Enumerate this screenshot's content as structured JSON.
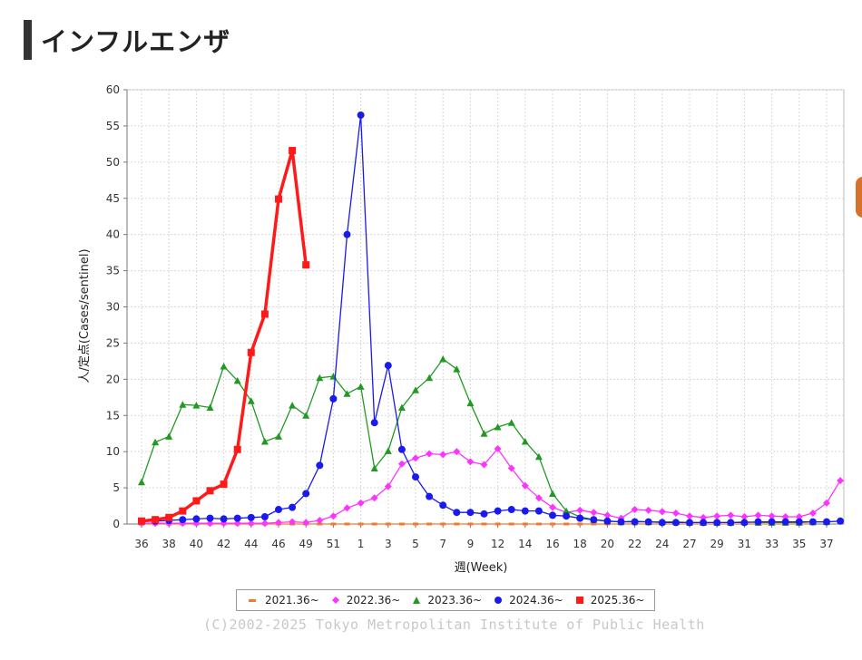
{
  "page": {
    "title": "インフルエンザ"
  },
  "copyright": "(C)2002-2025 Tokyo Metropolitan Institute of Public Health",
  "chart_data": {
    "type": "line",
    "xlabel": "週(Week)",
    "ylabel": "人/定点(Cases/sentinel)",
    "ylim": [
      0,
      60
    ],
    "yticks": [
      0,
      5,
      10,
      15,
      20,
      25,
      30,
      35,
      40,
      45,
      50,
      55,
      60
    ],
    "grid": true,
    "legend_position": "bottom",
    "x_tick_labels": [
      "36",
      "38",
      "40",
      "42",
      "44",
      "46",
      "49",
      "51",
      "1",
      "3",
      "5",
      "7",
      "9",
      "12",
      "14",
      "16",
      "18",
      "20",
      "22",
      "24",
      "27",
      "29",
      "31",
      "33",
      "35",
      "37"
    ],
    "x_tick_positions": [
      0,
      2,
      4,
      6,
      8,
      10,
      12,
      14,
      16,
      18,
      20,
      22,
      24,
      26,
      28,
      30,
      32,
      34,
      36,
      38,
      40,
      42,
      44,
      46,
      48,
      50
    ],
    "series": [
      {
        "name": "2021.36~",
        "color": "#f07a2e",
        "marker": "dash",
        "values": [
          0.0,
          0.0,
          0.0,
          0.0,
          0.0,
          0.0,
          0.0,
          0.0,
          0.0,
          0.0,
          0.0,
          0.0,
          0.0,
          0.0,
          0.0,
          0.0,
          0.0,
          0.0,
          0.0,
          0.0,
          0.0,
          0.0,
          0.0,
          0.0,
          0.0,
          0.0,
          0.0,
          0.0,
          0.0,
          0.0,
          0.0,
          0.0,
          0.0,
          0.0,
          0.0,
          0.0,
          0.0,
          0.0,
          0.0,
          0.0,
          0.0,
          0.0,
          0.0,
          0.0,
          0.0,
          0.0,
          0.0,
          0.0,
          0.0,
          0.0
        ]
      },
      {
        "name": "2022.36~",
        "color": "#ff33ff",
        "marker": "diamond",
        "values": [
          0.1,
          0.1,
          0.1,
          0.1,
          0.1,
          0.1,
          0.1,
          0.1,
          0.1,
          0.1,
          0.2,
          0.3,
          0.2,
          0.5,
          1.1,
          2.2,
          2.9,
          3.6,
          5.2,
          8.3,
          9.1,
          9.7,
          9.6,
          10.0,
          8.6,
          8.2,
          10.4,
          7.7,
          5.3,
          3.6,
          2.3,
          1.6,
          1.9,
          1.6,
          1.2,
          0.8,
          2.0,
          1.9,
          1.7,
          1.5,
          1.1,
          0.9,
          1.1,
          1.2,
          1.0,
          1.2,
          1.1,
          1.0,
          1.0,
          1.5,
          2.9,
          6.0
        ]
      },
      {
        "name": "2023.36~",
        "color": "#229922",
        "marker": "triangle",
        "values": [
          5.8,
          11.3,
          12.1,
          16.5,
          16.4,
          16.1,
          21.8,
          19.8,
          17.0,
          11.4,
          12.1,
          16.4,
          15.0,
          20.2,
          20.4,
          18.0,
          19.0,
          7.7,
          10.1,
          16.1,
          18.5,
          20.2,
          22.8,
          21.4,
          16.7,
          12.5,
          13.4,
          14.0,
          11.4,
          9.3,
          4.2,
          1.8,
          1.0,
          0.6,
          0.4,
          0.3,
          0.4,
          0.3,
          0.3,
          0.3,
          0.2,
          0.2,
          0.2,
          0.2,
          0.3,
          0.2,
          0.2,
          0.2,
          0.2,
          0.3,
          0.3
        ]
      },
      {
        "name": "2024.36~",
        "color": "#1a1aee",
        "marker": "circle",
        "values": [
          0.4,
          0.4,
          0.5,
          0.6,
          0.7,
          0.8,
          0.7,
          0.8,
          0.9,
          1.0,
          2.0,
          2.3,
          4.2,
          8.1,
          17.3,
          40.0,
          56.5,
          14.0,
          21.9,
          10.3,
          6.5,
          3.8,
          2.6,
          1.6,
          1.6,
          1.4,
          1.8,
          2.0,
          1.8,
          1.8,
          1.2,
          1.1,
          0.8,
          0.6,
          0.4,
          0.3,
          0.3,
          0.3,
          0.2,
          0.2,
          0.2,
          0.2,
          0.2,
          0.2,
          0.2,
          0.3,
          0.3,
          0.3,
          0.3,
          0.3,
          0.3,
          0.4
        ]
      },
      {
        "name": "2025.36~",
        "color": "#ff1a1a",
        "marker": "square",
        "values": [
          0.4,
          0.6,
          0.9,
          1.8,
          3.2,
          4.6,
          5.5,
          10.3,
          23.7,
          29.0,
          44.9,
          51.6,
          35.8
        ]
      }
    ]
  },
  "legend": {
    "items": [
      {
        "label": "2021.36~",
        "color": "#f07a2e",
        "marker": "dash"
      },
      {
        "label": "2022.36~",
        "color": "#ff33ff",
        "marker": "diamond"
      },
      {
        "label": "2023.36~",
        "color": "#229922",
        "marker": "triangle"
      },
      {
        "label": "2024.36~",
        "color": "#1a1aee",
        "marker": "circle"
      },
      {
        "label": "2025.36~",
        "color": "#ff1a1a",
        "marker": "square"
      }
    ]
  }
}
